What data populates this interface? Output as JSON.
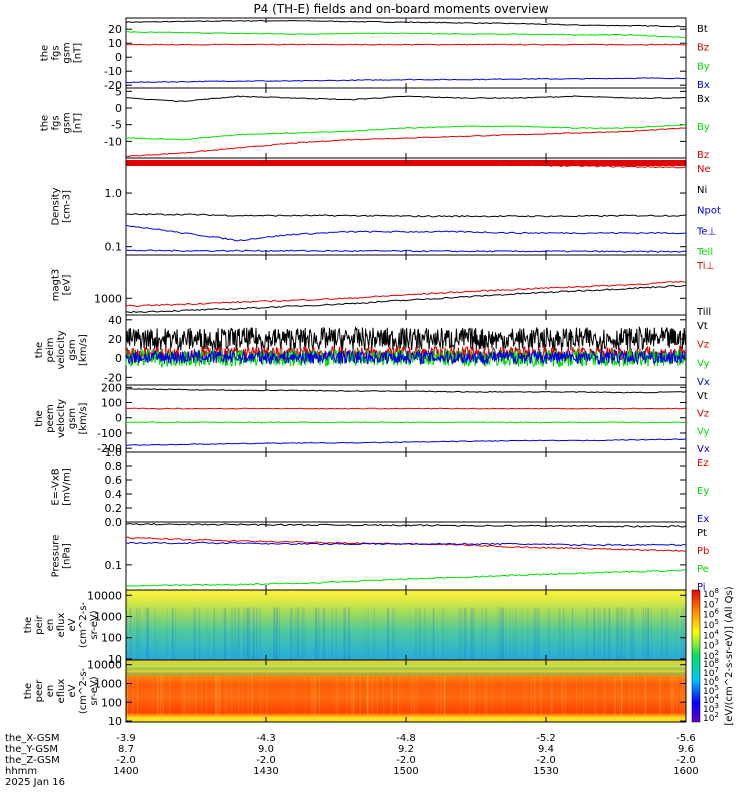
{
  "title": "P4 (TH-E) fields and on-board moments overview",
  "colors": {
    "black": "#000000",
    "red": "#e00000",
    "green": "#00e000",
    "blue": "#0000e0"
  },
  "chart_data": [
    {
      "type": "line",
      "ylabel": [
        "the",
        "fgs",
        "gsm",
        "[nT]"
      ],
      "yticks": [
        20,
        10,
        0,
        -10,
        -20
      ],
      "ylim": [
        -22,
        28
      ],
      "x": [
        0,
        0.1,
        0.2,
        0.3,
        0.4,
        0.5,
        0.6,
        0.7,
        0.8,
        0.9,
        1.0
      ],
      "series": [
        {
          "name": "Bt",
          "color": "black",
          "values": [
            25,
            25.5,
            26,
            26,
            25.5,
            25,
            24.5,
            24,
            23,
            22.5,
            22
          ]
        },
        {
          "name": "Bz",
          "color": "red",
          "values": [
            9,
            9,
            9,
            9,
            9,
            9,
            9,
            9,
            9,
            9,
            9
          ]
        },
        {
          "name": "By",
          "color": "green",
          "values": [
            18,
            17.5,
            17,
            16.5,
            17,
            17,
            16.5,
            16.5,
            16,
            16,
            14
          ]
        },
        {
          "name": "Bx",
          "color": "blue",
          "values": [
            -18,
            -17.5,
            -17,
            -17,
            -16.5,
            -16,
            -16,
            -15.5,
            -15.5,
            -15,
            -15
          ]
        }
      ]
    },
    {
      "type": "line",
      "ylabel": [
        "the",
        "fgs",
        "gsm",
        "[nT]"
      ],
      "yticks": [
        5,
        0,
        -5,
        -10
      ],
      "ylim": [
        -15,
        6
      ],
      "x": [
        0,
        0.1,
        0.2,
        0.3,
        0.4,
        0.5,
        0.6,
        0.7,
        0.8,
        0.9,
        1.0
      ],
      "series": [
        {
          "name": "Bx",
          "color": "black",
          "values": [
            3,
            2,
            3.5,
            3,
            2.5,
            3.5,
            3,
            3,
            3.5,
            3,
            3
          ]
        },
        {
          "name": "By",
          "color": "green",
          "values": [
            -9,
            -9.5,
            -8,
            -7.5,
            -7,
            -6,
            -5.5,
            -5.5,
            -6,
            -6,
            -5
          ]
        },
        {
          "name": "Bz",
          "color": "red",
          "values": [
            -14.5,
            -13.5,
            -12,
            -10.5,
            -9.5,
            -9,
            -8.5,
            -8,
            -7.5,
            -7,
            -6
          ]
        }
      ]
    },
    {
      "type": "line",
      "ylabel": [
        "Density",
        "[cm-3]"
      ],
      "yticks": [
        "1.0",
        "0.1"
      ],
      "scale": "log",
      "ylim": [
        0.07,
        4.5
      ],
      "x": [
        0,
        0.1,
        0.2,
        0.3,
        0.4,
        0.5,
        0.6,
        0.7,
        0.8,
        0.9,
        1.0
      ],
      "series": [
        {
          "name": "Ne",
          "color": "red",
          "values": [
            3.7,
            3.7,
            3.7,
            3.7,
            3.6,
            3.5,
            3.4,
            3.3,
            3.2,
            3.1,
            3.0
          ]
        },
        {
          "name": "Ni",
          "color": "black",
          "values": [
            0.4,
            0.4,
            0.38,
            0.38,
            0.38,
            0.37,
            0.37,
            0.37,
            0.37,
            0.38,
            0.38
          ]
        },
        {
          "name": "Npot",
          "color": "blue",
          "values": [
            0.25,
            0.18,
            0.13,
            0.17,
            0.19,
            0.19,
            0.19,
            0.18,
            0.18,
            0.18,
            0.18
          ]
        },
        {
          "name": "Te⊥",
          "color": "blue",
          "values": [
            0.085,
            0.084,
            0.084,
            0.084,
            0.083,
            0.083,
            0.082,
            0.082,
            0.082,
            0.081,
            0.081
          ]
        },
        {
          "name": "Tell",
          "color": "green",
          "values": [
            0.066,
            0.065,
            0.064,
            0.064,
            0.064,
            0.063,
            0.063,
            0.063,
            0.063,
            0.063,
            0.063
          ]
        }
      ]
    },
    {
      "type": "line",
      "ylabel": [
        "magt3",
        "[eV]"
      ],
      "yticks": [
        "1000"
      ],
      "scale": "log",
      "ylim": [
        500,
        6000
      ],
      "x": [
        0,
        0.1,
        0.2,
        0.3,
        0.4,
        0.5,
        0.6,
        0.7,
        0.8,
        0.9,
        1.0
      ],
      "series": [
        {
          "name": "Ti⊥",
          "color": "red",
          "values": [
            720,
            780,
            850,
            920,
            1000,
            1150,
            1300,
            1450,
            1600,
            1750,
            2000
          ]
        },
        {
          "name": "Till",
          "color": "black",
          "values": [
            560,
            600,
            650,
            720,
            800,
            920,
            1050,
            1200,
            1350,
            1500,
            1700
          ]
        }
      ]
    },
    {
      "type": "line",
      "ylabel": [
        "the",
        "peim",
        "velocity",
        "gsm",
        "[km/s]"
      ],
      "yticks": [
        40,
        20,
        0,
        -20
      ],
      "ylim": [
        -28,
        45
      ],
      "x": [
        0,
        0.1,
        0.2,
        0.3,
        0.4,
        0.5,
        0.6,
        0.7,
        0.8,
        0.9,
        1.0
      ],
      "series": [
        {
          "name": "Vt",
          "color": "black",
          "values": [
            20,
            20,
            20,
            20,
            20,
            20,
            20,
            20,
            20,
            20,
            20
          ]
        },
        {
          "name": "Vz",
          "color": "red",
          "values": [
            5,
            5,
            5,
            5,
            5,
            5,
            5,
            5,
            5,
            5,
            5
          ]
        },
        {
          "name": "Vy",
          "color": "green",
          "values": [
            0,
            0,
            0,
            0,
            0,
            0,
            0,
            0,
            0,
            0,
            0
          ]
        },
        {
          "name": "Vx",
          "color": "blue",
          "values": [
            1,
            1,
            1,
            1,
            1,
            1,
            1,
            1,
            1,
            1,
            1
          ]
        }
      ]
    },
    {
      "type": "line",
      "ylabel": [
        "the",
        "peem",
        "velocity",
        "gsm",
        "[km/s]"
      ],
      "yticks": [
        200,
        100,
        0,
        -100,
        -200
      ],
      "ylim": [
        -225,
        215
      ],
      "x": [
        0,
        0.1,
        0.2,
        0.3,
        0.4,
        0.5,
        0.6,
        0.7,
        0.8,
        0.9,
        1.0
      ],
      "series": [
        {
          "name": "Vt",
          "color": "black",
          "values": [
            190,
            185,
            180,
            180,
            175,
            175,
            170,
            170,
            170,
            165,
            170
          ]
        },
        {
          "name": "Vz",
          "color": "red",
          "values": [
            60,
            60,
            60,
            60,
            60,
            60,
            60,
            60,
            60,
            60,
            60
          ]
        },
        {
          "name": "Vy",
          "color": "green",
          "values": [
            -30,
            -30,
            -30,
            -30,
            -30,
            -30,
            -30,
            -30,
            -30,
            -30,
            -30
          ]
        },
        {
          "name": "Vx",
          "color": "blue",
          "values": [
            -180,
            -175,
            -170,
            -165,
            -165,
            -160,
            -155,
            -150,
            -150,
            -145,
            -140
          ]
        }
      ]
    },
    {
      "type": "line",
      "ylabel": [
        "E=-VxB",
        "[mV/m]"
      ],
      "yticks": [
        "1.0",
        "0.8",
        "0.6",
        "0.4",
        "0.2",
        "0.0"
      ],
      "ylim": [
        0,
        1.0
      ],
      "legend": [
        "Ez",
        "Ey",
        "Ex"
      ],
      "legend_colors": [
        "red",
        "green",
        "blue"
      ]
    },
    {
      "type": "line",
      "ylabel": [
        "Pressure",
        "[nPa]"
      ],
      "yticks": [
        "0.1"
      ],
      "scale": "log",
      "ylim": [
        0.035,
        0.6
      ],
      "x": [
        0,
        0.1,
        0.2,
        0.3,
        0.4,
        0.5,
        0.6,
        0.7,
        0.8,
        0.9,
        1.0
      ],
      "series": [
        {
          "name": "Pt",
          "color": "black",
          "values": [
            0.55,
            0.54,
            0.54,
            0.53,
            0.53,
            0.52,
            0.52,
            0.51,
            0.51,
            0.5,
            0.5
          ]
        },
        {
          "name": "Pb",
          "color": "red",
          "values": [
            0.31,
            0.29,
            0.27,
            0.26,
            0.25,
            0.24,
            0.23,
            0.21,
            0.2,
            0.19,
            0.18
          ]
        },
        {
          "name": "Pe",
          "color": "green",
          "values": [
            0.042,
            0.043,
            0.044,
            0.046,
            0.05,
            0.055,
            0.06,
            0.065,
            0.07,
            0.075,
            0.08
          ]
        },
        {
          "name": "Pi",
          "color": "blue",
          "values": [
            0.25,
            0.25,
            0.25,
            0.24,
            0.24,
            0.24,
            0.24,
            0.24,
            0.23,
            0.23,
            0.23
          ]
        }
      ]
    },
    {
      "type": "heatmap",
      "ylabel": [
        "the",
        "peir",
        "en",
        "eflux",
        "eV",
        "(cm^2-s-",
        "sr-eV)"
      ],
      "yticks": [
        "10000",
        "1000",
        "100",
        "10"
      ]
    },
    {
      "type": "heatmap",
      "ylabel": [
        "the",
        "peer",
        "en",
        "eflux",
        "eV",
        "(cm^2-s-",
        "sr-eV)"
      ],
      "yticks": [
        "10000",
        "1000",
        "100",
        "10"
      ],
      "colorbar_label": "[eV/(cm^2-s-sr-eV)] (All Qs)",
      "colorbar_ticks": [
        "10^8",
        "10^7",
        "10^6",
        "10^5",
        "10^4",
        "10^3",
        "10^2"
      ]
    }
  ],
  "time_axis": {
    "rows": [
      {
        "label": "the_X-GSM",
        "values": [
          "-3.9",
          "-4.3",
          "-4.8",
          "-5.2",
          "-5.6"
        ]
      },
      {
        "label": "the_Y-GSM",
        "values": [
          "8.7",
          "9.0",
          "9.2",
          "9.4",
          "9.6"
        ]
      },
      {
        "label": "the_Z-GSM",
        "values": [
          "-2.0",
          "-2.0",
          "-2.0",
          "-2.0",
          "-2.0"
        ]
      },
      {
        "label": "hhmm",
        "values": [
          "1400",
          "1430",
          "1500",
          "1530",
          "1600"
        ]
      }
    ],
    "date": "2025 Jan 16"
  }
}
